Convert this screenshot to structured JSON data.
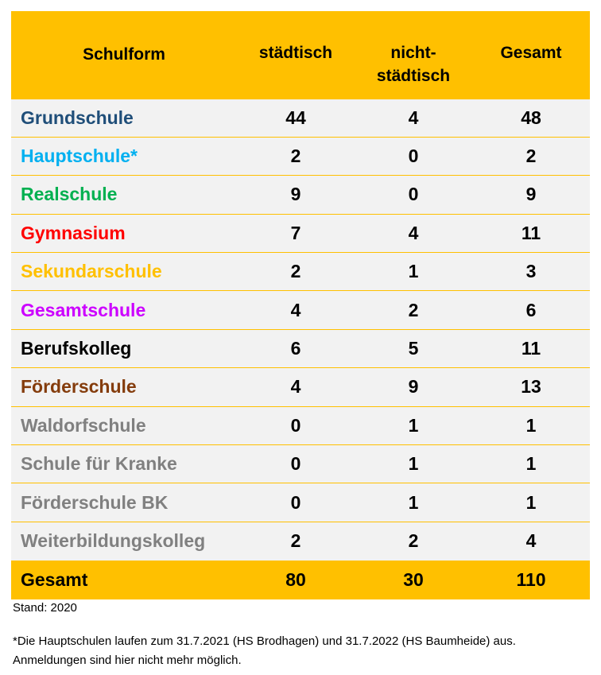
{
  "table": {
    "headers": {
      "schulform": "Schulform",
      "staedtisch": "städtisch",
      "nicht_line1": "nicht-",
      "nicht_line2": "städtisch",
      "gesamt": "Gesamt"
    },
    "rows": [
      {
        "name": "Grundschule",
        "color": "#1F4E79",
        "staedtisch": "44",
        "nicht": "4",
        "gesamt": "48"
      },
      {
        "name": "Hauptschule*",
        "color": "#00B0F0",
        "staedtisch": "2",
        "nicht": "0",
        "gesamt": "2"
      },
      {
        "name": "Realschule",
        "color": "#00B050",
        "staedtisch": "9",
        "nicht": "0",
        "gesamt": "9"
      },
      {
        "name": "Gymnasium",
        "color": "#FF0000",
        "staedtisch": "7",
        "nicht": "4",
        "gesamt": "11"
      },
      {
        "name": "Sekundarschule",
        "color": "#FFC000",
        "staedtisch": "2",
        "nicht": "1",
        "gesamt": "3"
      },
      {
        "name": "Gesamtschule",
        "color": "#CC00FF",
        "staedtisch": "4",
        "nicht": "2",
        "gesamt": "6"
      },
      {
        "name": "Berufskolleg",
        "color": "#000000",
        "staedtisch": "6",
        "nicht": "5",
        "gesamt": "11"
      },
      {
        "name": "Förderschule",
        "color": "#843C0C",
        "staedtisch": "4",
        "nicht": "9",
        "gesamt": "13"
      },
      {
        "name": "Waldorfschule",
        "color": "#808080",
        "staedtisch": "0",
        "nicht": "1",
        "gesamt": "1"
      },
      {
        "name": "Schule für Kranke",
        "color": "#808080",
        "staedtisch": "0",
        "nicht": "1",
        "gesamt": "1"
      },
      {
        "name": "Förderschule BK",
        "color": "#808080",
        "staedtisch": "0",
        "nicht": "1",
        "gesamt": "1"
      },
      {
        "name": "Weiterbildungskolleg",
        "color": "#808080",
        "staedtisch": "2",
        "nicht": "2",
        "gesamt": "4"
      }
    ],
    "total": {
      "name": "Gesamt",
      "staedtisch": "80",
      "nicht": "30",
      "gesamt": "110"
    },
    "accent_color": "#FFC000",
    "row_background": "#F2F2F2"
  },
  "notes": {
    "stand": "Stand: 2020",
    "footnote": "*Die Hauptschulen laufen zum 31.7.2021 (HS Brodhagen) und 31.7.2022 (HS Baumheide) aus. Anmeldungen sind hier nicht mehr möglich."
  }
}
